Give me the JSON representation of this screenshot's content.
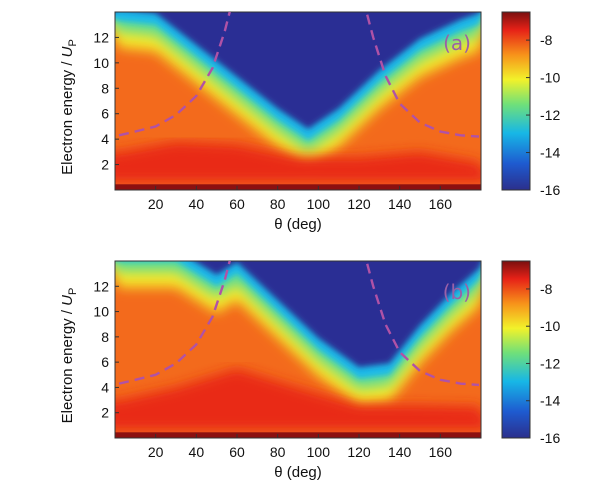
{
  "chart_data": {
    "type": "heatmap",
    "panels": [
      {
        "tag": "(a)",
        "tag_color": "#9a60a8",
        "xlabel": "θ (deg)",
        "ylabel_main": "Electron energy / ",
        "ylabel_var": "U",
        "ylabel_sub": "P",
        "xlim": [
          0,
          180
        ],
        "ylim": [
          0,
          14
        ],
        "xticks": [
          20,
          40,
          60,
          80,
          100,
          120,
          140,
          160
        ],
        "yticks": [
          2,
          4,
          6,
          8,
          10,
          12
        ],
        "colorbar": {
          "range": [
            -16,
            -6.5
          ],
          "ticks": [
            -8,
            -10,
            -12,
            -14,
            -16
          ]
        },
        "boundary_curve": {
          "style": "dashed",
          "color": "#b052a6",
          "left_branch": [
            [
              2,
              4.3
            ],
            [
              10,
              4.6
            ],
            [
              20,
              5.0
            ],
            [
              30,
              5.9
            ],
            [
              40,
              7.4
            ],
            [
              48,
              9.6
            ],
            [
              54,
              12.5
            ],
            [
              58,
              15.0
            ]
          ],
          "right_branch": [
            [
              122,
              15.0
            ],
            [
              127,
              12.0
            ],
            [
              133,
              9.0
            ],
            [
              140,
              6.8
            ],
            [
              150,
              5.3
            ],
            [
              160,
              4.6
            ],
            [
              170,
              4.3
            ],
            [
              179,
              4.2
            ]
          ]
        },
        "low_signal_valley": [
          [
            2,
            13.8
          ],
          [
            20,
            13.5
          ],
          [
            40,
            11.0
          ],
          [
            60,
            8.5
          ],
          [
            80,
            6.0
          ],
          [
            95,
            4.4
          ],
          [
            110,
            6.0
          ],
          [
            130,
            9.0
          ],
          [
            150,
            11.5
          ],
          [
            170,
            13.0
          ],
          [
            179,
            13.5
          ]
        ],
        "high_band": [
          [
            2,
            3.0
          ],
          [
            30,
            3.8
          ],
          [
            60,
            3.6
          ],
          [
            90,
            2.6
          ],
          [
            120,
            2.6
          ],
          [
            150,
            3.0
          ],
          [
            179,
            2.2
          ]
        ]
      },
      {
        "tag": "(b)",
        "tag_color": "#9a60a8",
        "xlabel": "θ (deg)",
        "ylabel_main": "Electron energy / ",
        "ylabel_var": "U",
        "ylabel_sub": "P",
        "xlim": [
          0,
          180
        ],
        "ylim": [
          0,
          14
        ],
        "xticks": [
          20,
          40,
          60,
          80,
          100,
          120,
          140,
          160
        ],
        "yticks": [
          2,
          4,
          6,
          8,
          10,
          12
        ],
        "colorbar": {
          "range": [
            -16,
            -6.5
          ],
          "ticks": [
            -8,
            -10,
            -12,
            -14,
            -16
          ]
        },
        "boundary_curve": {
          "style": "dashed",
          "color": "#b052a6",
          "left_branch": [
            [
              2,
              4.3
            ],
            [
              10,
              4.6
            ],
            [
              20,
              5.0
            ],
            [
              30,
              5.9
            ],
            [
              40,
              7.4
            ],
            [
              48,
              9.6
            ],
            [
              54,
              12.5
            ],
            [
              58,
              15.0
            ]
          ],
          "right_branch": [
            [
              122,
              15.0
            ],
            [
              127,
              12.0
            ],
            [
              133,
              9.0
            ],
            [
              140,
              6.8
            ],
            [
              150,
              5.3
            ],
            [
              160,
              4.6
            ],
            [
              170,
              4.3
            ],
            [
              179,
              4.2
            ]
          ]
        },
        "low_signal_valley": [
          [
            2,
            14.5
          ],
          [
            30,
            14.5
          ],
          [
            50,
            12.5
          ],
          [
            60,
            13.5
          ],
          [
            80,
            10.5
          ],
          [
            100,
            7.5
          ],
          [
            120,
            5.2
          ],
          [
            135,
            5.5
          ],
          [
            150,
            8.5
          ],
          [
            165,
            11.0
          ],
          [
            179,
            13.0
          ]
        ],
        "high_band": [
          [
            2,
            3.0
          ],
          [
            30,
            4.0
          ],
          [
            60,
            5.5
          ],
          [
            90,
            4.0
          ],
          [
            120,
            2.6
          ],
          [
            150,
            2.6
          ],
          [
            179,
            2.5
          ]
        ]
      }
    ]
  }
}
